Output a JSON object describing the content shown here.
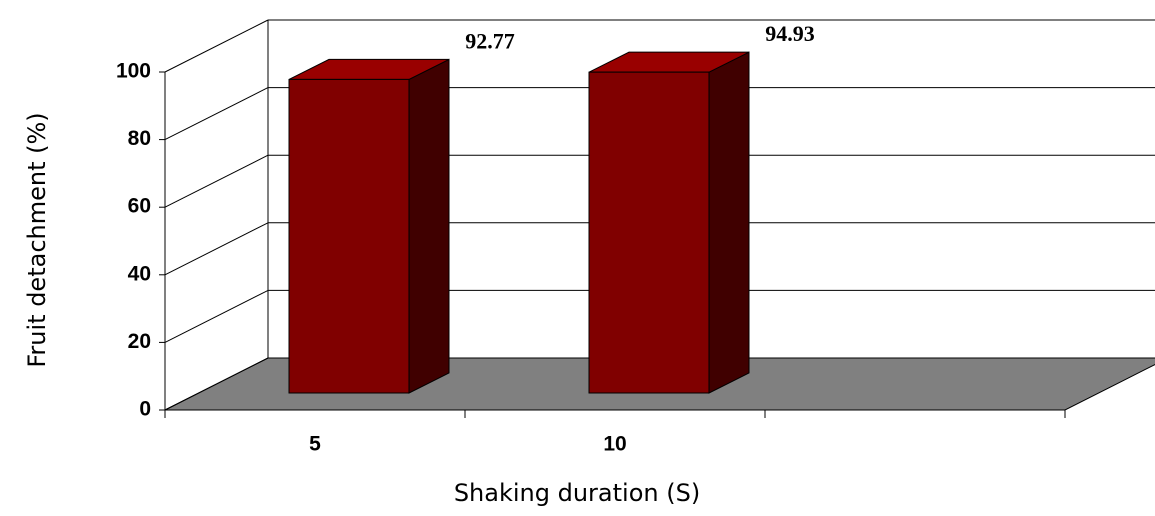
{
  "chart_data": {
    "type": "bar",
    "categories": [
      "5",
      "10",
      null
    ],
    "values": [
      92.77,
      94.93,
      null
    ],
    "color": "#800000",
    "ylim": [
      0,
      100
    ],
    "yticks": [
      0,
      20,
      40,
      60,
      80,
      100
    ],
    "grid": true,
    "x_label": "Shaking duration (S)",
    "y_label": "Fruit detachment (%)"
  }
}
